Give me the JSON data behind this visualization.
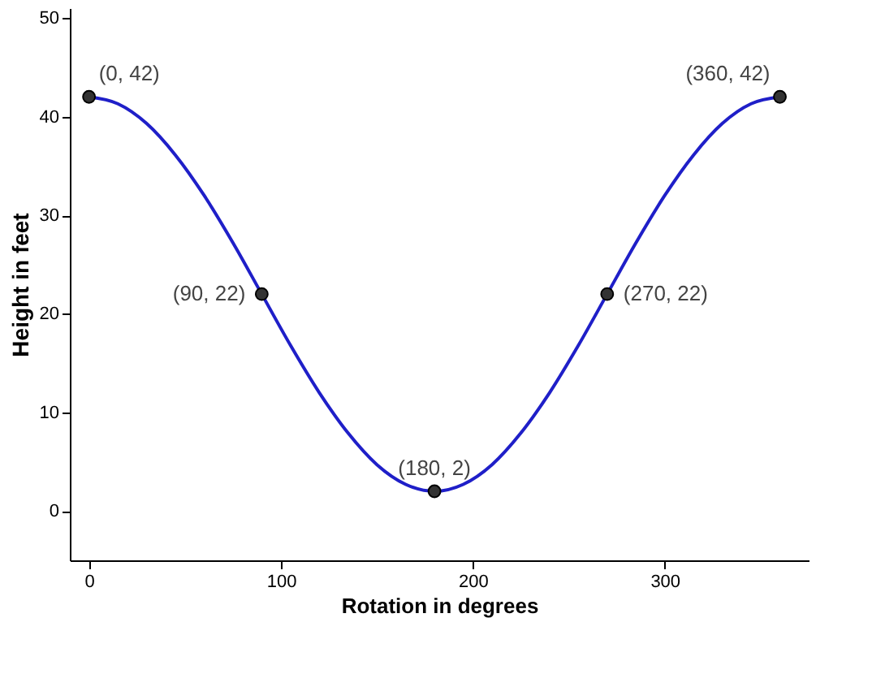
{
  "chart_data": {
    "type": "line",
    "xlabel": "Rotation in degrees",
    "ylabel": "Height in feet",
    "xlim": [
      -10,
      375
    ],
    "ylim": [
      -5,
      51
    ],
    "xticks": [
      0,
      100,
      200,
      300
    ],
    "yticks": [
      0,
      10,
      20,
      30,
      40,
      50
    ],
    "grid": false,
    "series": [
      {
        "color": "#1f1fc8",
        "marker": "none",
        "x": [
          0,
          15,
          30,
          45,
          60,
          75,
          90,
          105,
          120,
          135,
          150,
          165,
          180,
          195,
          210,
          225,
          240,
          255,
          270,
          285,
          300,
          315,
          330,
          345,
          360
        ],
        "values": [
          42,
          41.3,
          39.3,
          36.1,
          32,
          27.2,
          22,
          16.8,
          12,
          7.9,
          4.7,
          2.7,
          2,
          2.7,
          4.7,
          7.9,
          12,
          16.8,
          22,
          27.2,
          32,
          36.1,
          39.3,
          41.3,
          42
        ]
      },
      {
        "type": "scatter",
        "color": "#333333",
        "marker": "circle",
        "x": [
          0,
          90,
          180,
          270,
          360
        ],
        "values": [
          42,
          22,
          2,
          22,
          42
        ]
      }
    ],
    "annotations": [
      {
        "text": "(0, 42)",
        "x": 0,
        "y": 42
      },
      {
        "text": "(90, 22)",
        "x": 90,
        "y": 22
      },
      {
        "text": "(180, 2)",
        "x": 180,
        "y": 2
      },
      {
        "text": "(270, 22)",
        "x": 270,
        "y": 22
      },
      {
        "text": "(360, 42)",
        "x": 360,
        "y": 42
      }
    ]
  }
}
